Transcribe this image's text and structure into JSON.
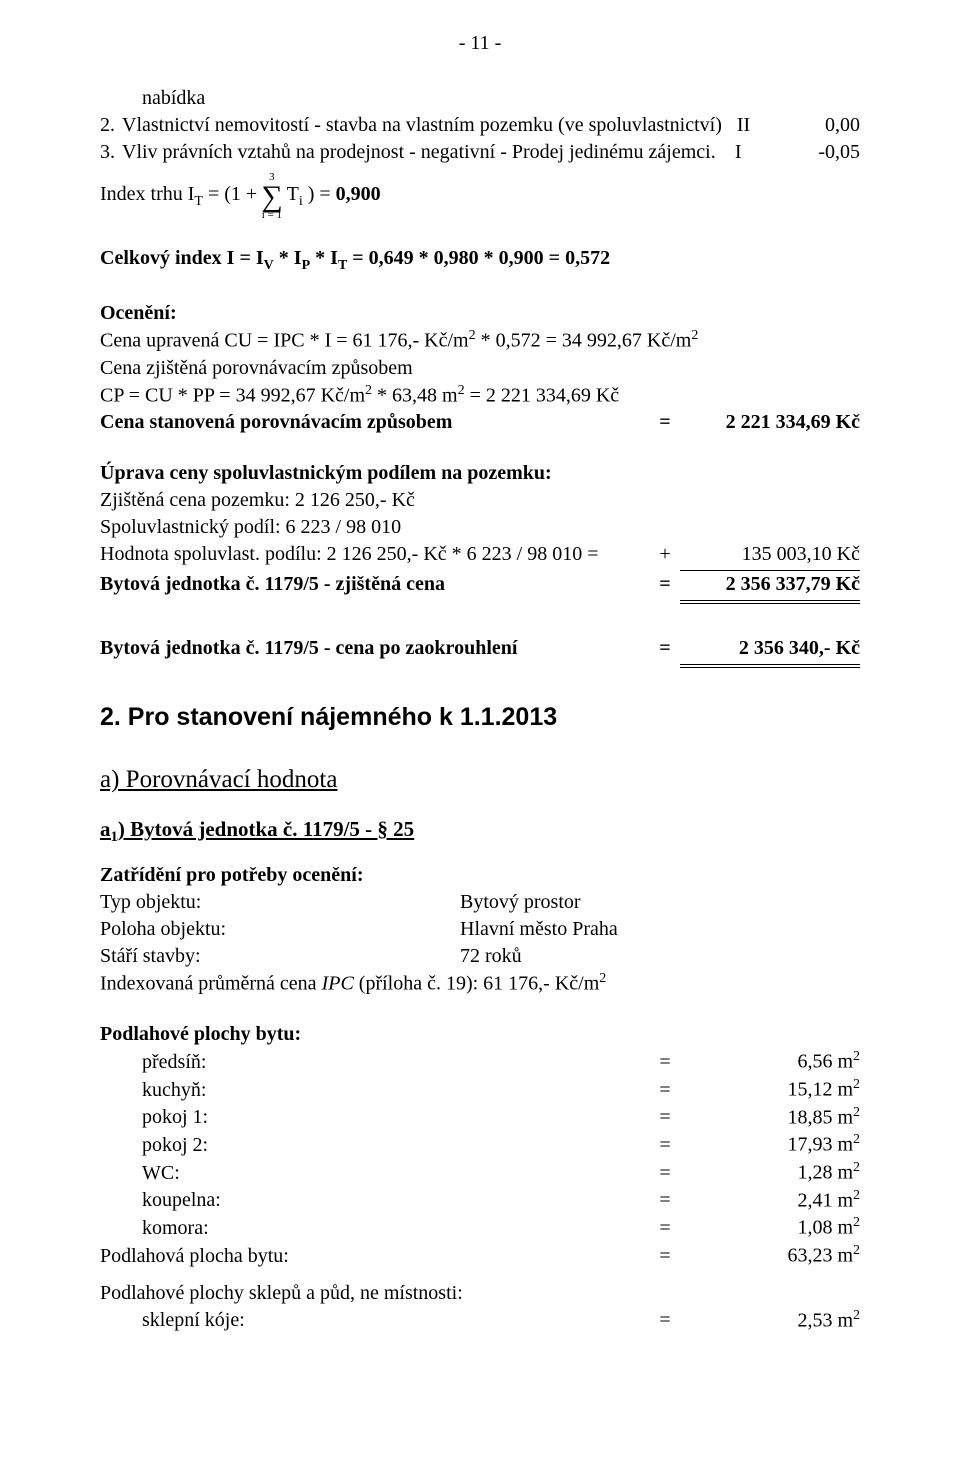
{
  "page_number": "- 11 -",
  "list": {
    "intro": "nabídka",
    "item2": {
      "num": "2.",
      "text": "Vlastnictví nemovitostí - stavba na vlastním pozemku (ve spoluvlastnictví)",
      "col": "II",
      "val": "0,00"
    },
    "item3": {
      "num": "3.",
      "text": "Vliv právních vztahů na prodejnost - negativní - Prodej jedinému zájemci.",
      "col": "I",
      "val": "-0,05"
    }
  },
  "indexTrhu": {
    "pre": "Index trhu I",
    "subT": "T",
    "eq": " = (1 + ",
    "sup": "3",
    "sub": "i = 1",
    "mid": " T",
    "subi": "i",
    "post": " ) = ",
    "val": "0,900"
  },
  "celkovy": "Celkový index I = I",
  "celkovy_rest": " = 0,649 * 0,980 * 0,900 = 0,572",
  "oceneni_hdr": "Ocenění:",
  "lines": {
    "l1a": "Cena upravená CU = IPC * I = 61 176,- Kč/m",
    "l1b": " * 0,572  = 34 992,67 Kč/m",
    "l2": "Cena zjištěná porovnávacím způsobem",
    "l3a": "CP = CU * PP = 34 992,67 Kč/m",
    "l3b": " * 63,48 m",
    "l3c": " = 2 221 334,69 Kč",
    "l4": "Cena stanovená porovnávacím způsobem",
    "l4v": "2 221 334,69 Kč"
  },
  "uprava_hdr": "Úprava ceny spoluvlastnickým podílem na pozemku:",
  "uprava": {
    "a": "Zjištěná cena pozemku: 2 126 250,- Kč",
    "b": "Spoluvlastnický podíl: 6 223 / 98 010",
    "c_l": "Hodnota spoluvlast. podílu:  2 126 250,- Kč * 6 223 / 98 010  =",
    "c_sign": "+",
    "c_v": "135 003,10 Kč",
    "d_l": "Bytová jednotka č. 1179/5 - zjištěná cena",
    "d_v": "2 356 337,79 Kč"
  },
  "zaokr_l": "Bytová jednotka č. 1179/5 - cena po zaokrouhlení",
  "zaokr_v": "2 356 340,- Kč",
  "h2": "2. Pro stanovení nájemného k 1.1.2013",
  "a_under": "a) Porovnávací hodnota",
  "a1_under": "a",
  "a1_under_rest": ") Bytová jednotka č. 1179/5 - § 25",
  "zatr_hdr": "Zatřídění pro potřeby ocenění:",
  "zatr": {
    "typ_k": "Typ objektu:",
    "typ_v": "Bytový prostor",
    "pol_k": "Poloha objektu:",
    "pol_v": "Hlavní město Praha",
    "star_k": "Stáří stavby:",
    "star_v": "72 roků",
    "ipc_l": "Indexovaná průměrná cena ",
    "ipc_i": "IPC",
    "ipc_r": " (příloha č. 19):    61 176,- Kč/m"
  },
  "pod_hdr": "Podlahové plochy bytu:",
  "rooms": [
    {
      "name": "předsíň:",
      "val": "6,56 m"
    },
    {
      "name": "kuchyň:",
      "val": "15,12 m"
    },
    {
      "name": "pokoj 1:",
      "val": "18,85 m"
    },
    {
      "name": "pokoj 2:",
      "val": "17,93 m"
    },
    {
      "name": "WC:",
      "val": "1,28 m"
    },
    {
      "name": "koupelna:",
      "val": "2,41 m"
    },
    {
      "name": "komora:",
      "val": "1,08 m"
    }
  ],
  "pod_total_l": "Podlahová plocha bytu:",
  "pod_total_v": "63,23 m",
  "sklep_hdr": "Podlahové plochy sklepů a půd, ne místnosti:",
  "sklep_l": "sklepní kóje:",
  "sklep_v": "2,53 m"
}
